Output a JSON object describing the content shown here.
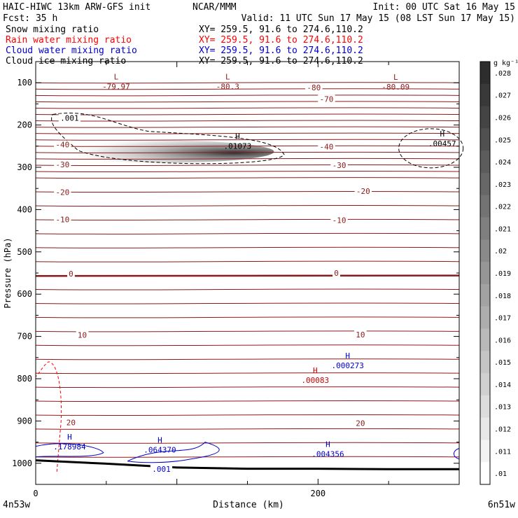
{
  "header": {
    "model": "HAIC-HIWC 13km ARW-GFS init",
    "org": "NCAR/MMM",
    "init": "Init: 00 UTC Sat 16 May 15",
    "fcst": "Fcst:   35 h",
    "valid": "Valid: 11 UTC Sun 17 May 15 (08 LST Sun 17 May 15)",
    "fields": [
      {
        "name": "Snow mixing ratio",
        "xy": "XY= 259.5, 91.6 to 274.6,110.2",
        "color": "#000000"
      },
      {
        "name": "Rain water mixing ratio",
        "xy": "XY= 259.5, 91.6 to 274.6,110.2",
        "color": "#ff0000"
      },
      {
        "name": "Cloud water mixing ratio",
        "xy": "XY= 259.5, 91.6 to 274.6,110.2",
        "color": "#0000cc"
      },
      {
        "name": "Cloud ice mixing ratio",
        "xy": "XY= 259.5, 91.6 to 274.6,110.2",
        "color": "#000000"
      }
    ]
  },
  "chart_data": {
    "type": "contour",
    "title": "",
    "xlabel": "Distance (km)",
    "ylabel": "Pressure (hPa)",
    "xlim": [
      0,
      300
    ],
    "ylim": [
      1050,
      50
    ],
    "x_ticks": [
      {
        "value": 0,
        "label": "0"
      },
      {
        "value": 200,
        "label": "200"
      }
    ],
    "x_endpoints": [
      "4n53w",
      "6n51w"
    ],
    "y_ticks": [
      100,
      200,
      300,
      400,
      500,
      600,
      700,
      800,
      900,
      1000
    ],
    "colorbar": {
      "unit": "g kg⁻¹",
      "levels": [
        ".01",
        ".011",
        ".012",
        ".013",
        ".014",
        ".015",
        ".016",
        ".017",
        ".018",
        ".019",
        ".02",
        ".021",
        ".022",
        ".023",
        ".024",
        ".025",
        ".026",
        ".027",
        ".028"
      ]
    },
    "temperature_contours": {
      "color": "#8b1a1a",
      "labels": [
        {
          "text": "-80",
          "x": 197,
          "p": 118
        },
        {
          "text": "-70",
          "x": 206,
          "p": 145
        },
        {
          "text": "-40",
          "x": 19,
          "p": 253
        },
        {
          "text": "-40",
          "x": 206,
          "p": 258
        },
        {
          "text": "-30",
          "x": 19,
          "p": 300
        },
        {
          "text": "-30",
          "x": 215,
          "p": 302
        },
        {
          "text": "-20",
          "x": 19,
          "p": 365
        },
        {
          "text": "-20",
          "x": 232,
          "p": 363
        },
        {
          "text": "-10",
          "x": 19,
          "p": 430
        },
        {
          "text": "-10",
          "x": 215,
          "p": 432
        },
        {
          "text": "0",
          "x": 25,
          "p": 558
        },
        {
          "text": "0",
          "x": 213,
          "p": 557
        },
        {
          "text": "10",
          "x": 33,
          "p": 703
        },
        {
          "text": "10",
          "x": 230,
          "p": 702
        },
        {
          "text": "20",
          "x": 25,
          "p": 910
        },
        {
          "text": "20",
          "x": 230,
          "p": 912
        }
      ],
      "extrema": [
        {
          "kind": "L",
          "value": "-79.97",
          "x": 57,
          "p": 115
        },
        {
          "kind": "L",
          "value": "-80.3",
          "x": 136,
          "p": 115
        },
        {
          "kind": "L",
          "value": "-80.09",
          "x": 255,
          "p": 116
        }
      ]
    },
    "cloud_ice": {
      "max": {
        "kind": "H",
        "value": ".01073",
        "x": 143,
        "p": 256
      },
      "contour_label": {
        "text": ".001",
        "x": 24,
        "p": 190
      }
    },
    "snow": {
      "max": {
        "kind": "H",
        "value": ".00457",
        "x": 288,
        "p": 250
      }
    },
    "rain_water": {
      "max": {
        "kind": "H",
        "value": ".00083",
        "x": 198,
        "p": 810
      }
    },
    "cloud_water": {
      "maxima": [
        {
          "kind": "H",
          "value": ".178984",
          "x": 24,
          "p": 967
        },
        {
          "kind": "H",
          "value": ".064370",
          "x": 88,
          "p": 975
        },
        {
          "kind": "H",
          "value": ".004356",
          "x": 207,
          "p": 985
        },
        {
          "kind": "H",
          "value": ".000273",
          "x": 221,
          "p": 775
        }
      ],
      "contour_label": {
        "text": ".001",
        "x": 89,
        "p": 1020
      }
    },
    "terrain_surface_hpa": [
      {
        "x": 0,
        "p": 993
      },
      {
        "x": 50,
        "p": 1001
      },
      {
        "x": 100,
        "p": 1010
      },
      {
        "x": 150,
        "p": 1013
      },
      {
        "x": 200,
        "p": 1013
      },
      {
        "x": 250,
        "p": 1014
      },
      {
        "x": 300,
        "p": 1014
      }
    ]
  }
}
